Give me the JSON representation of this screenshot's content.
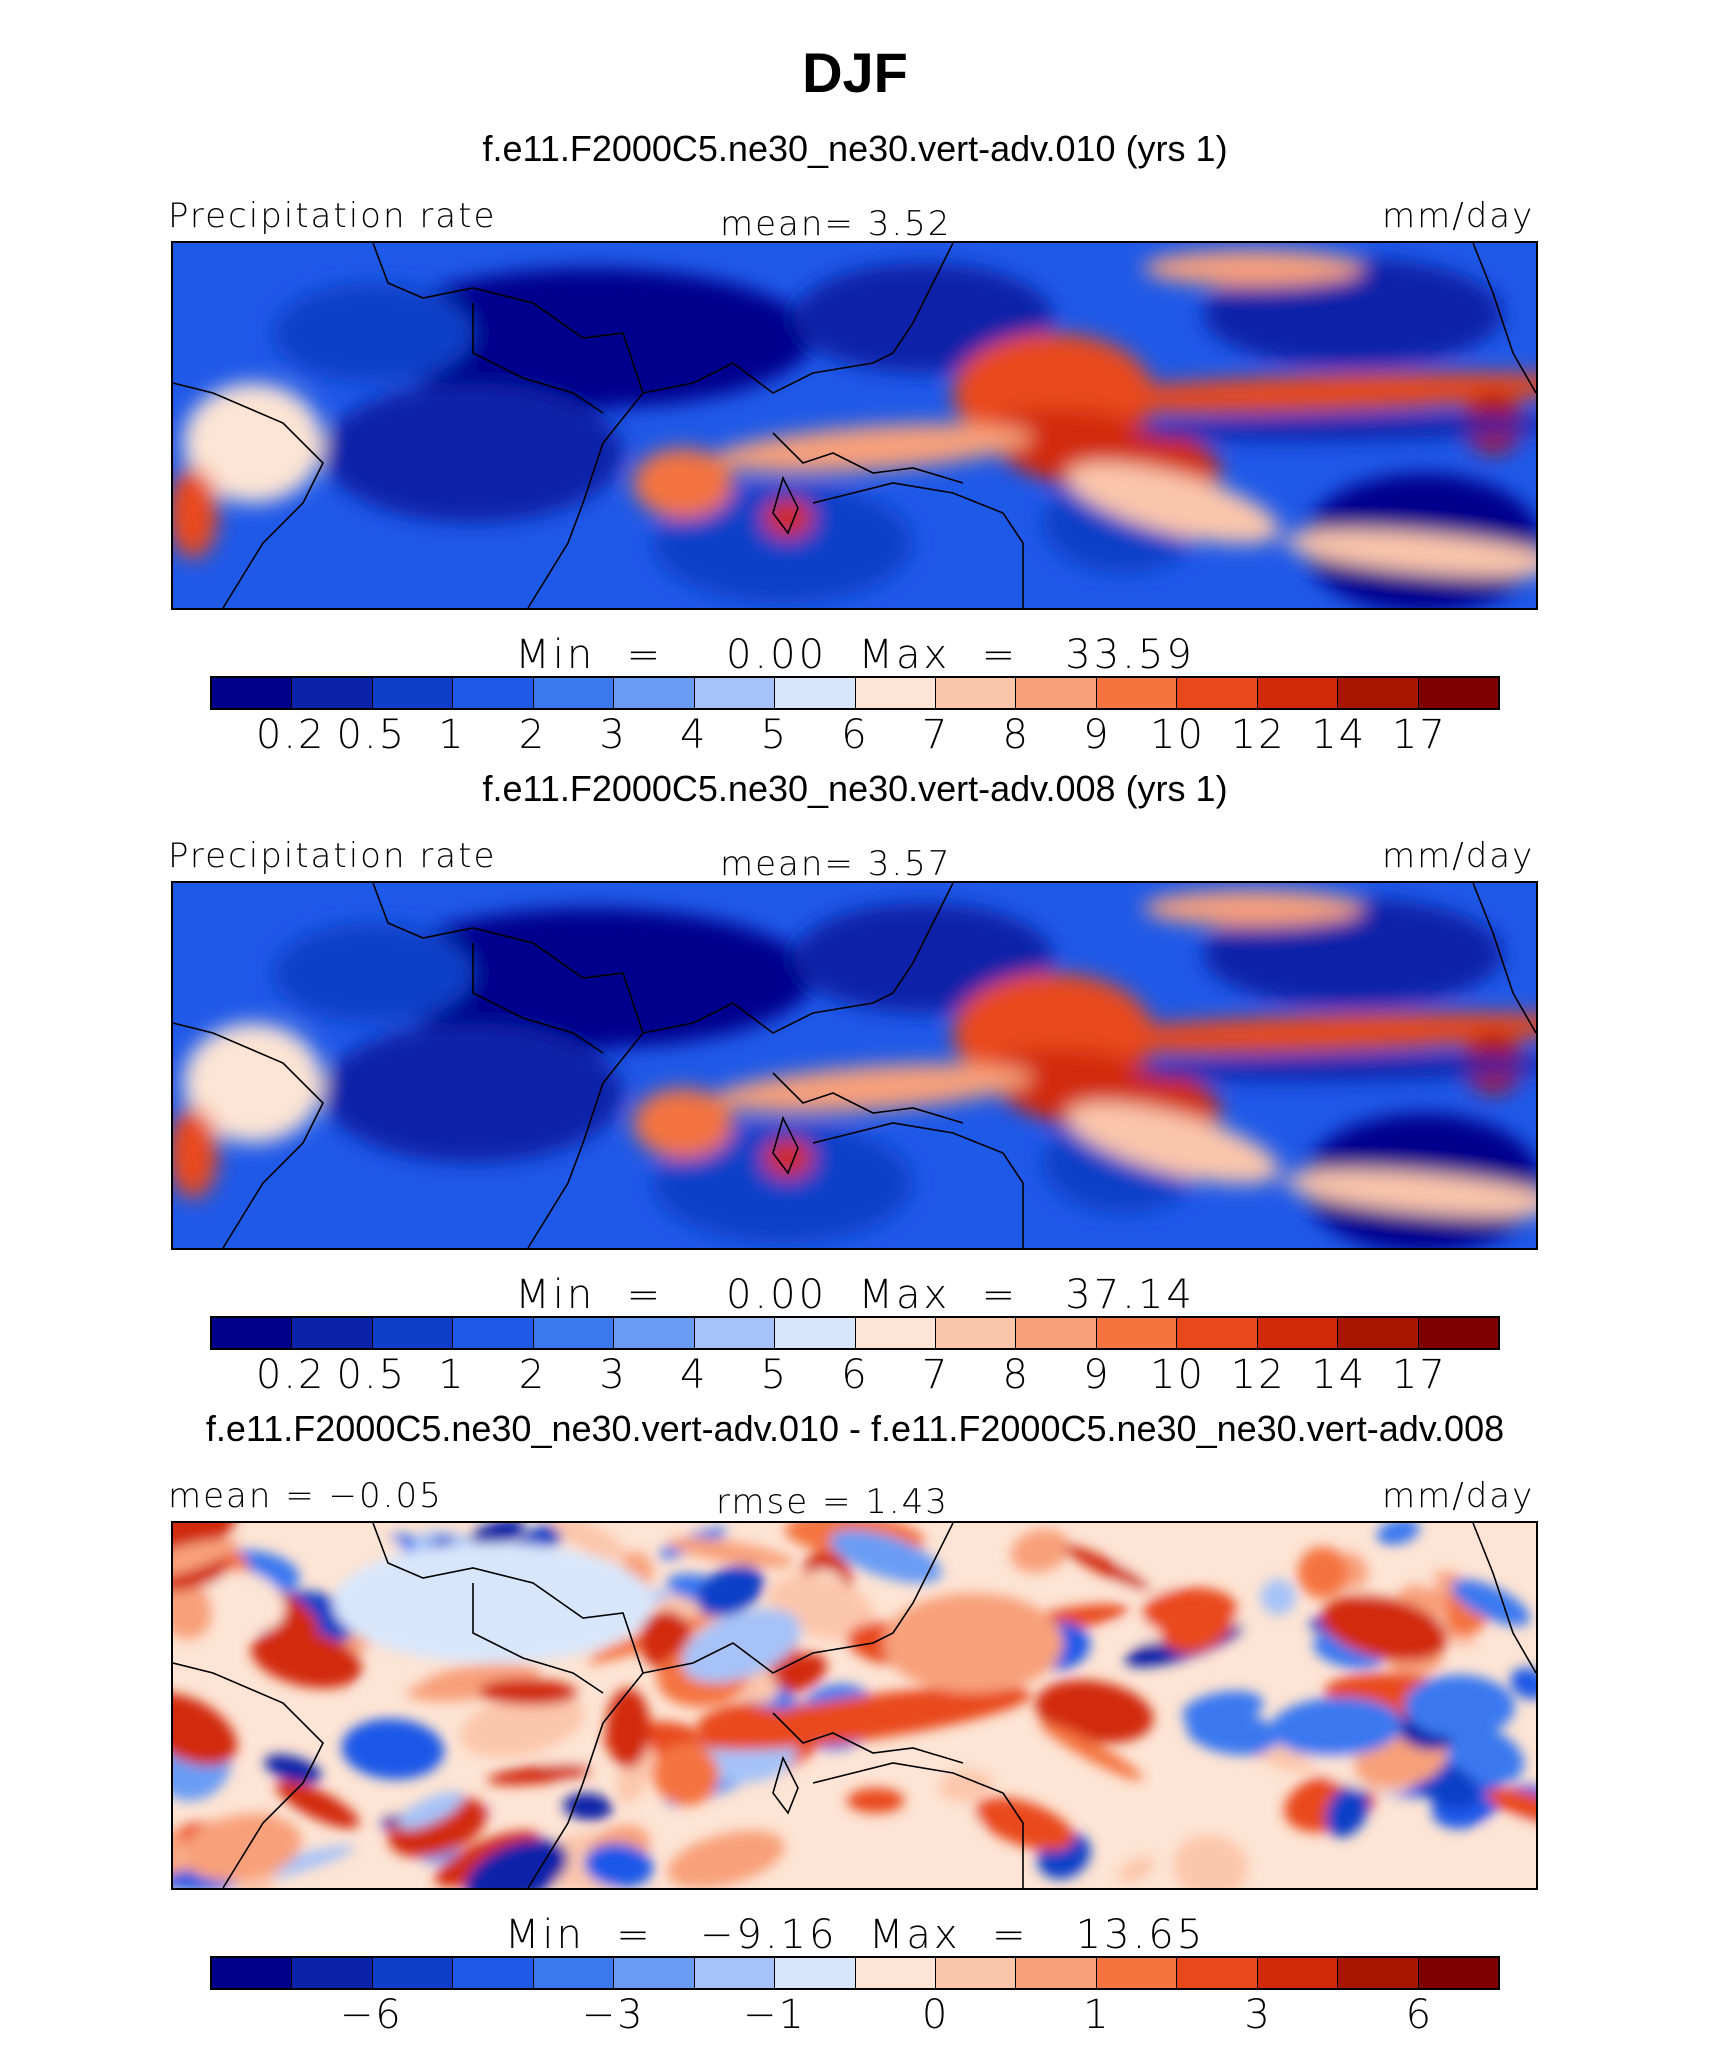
{
  "title": "DJF",
  "panels": [
    {
      "case": "f.e11.F2000C5.ne30_ne30.vert-adv.010 (yrs 1)",
      "left_label": "Precipitation rate",
      "center_label": "mean=    3.52",
      "right_label": "mm/day",
      "minmax": "Min  =    0.00  Max  =   33.59",
      "colorbar": {
        "colors": [
          "#00008c",
          "#0a23a8",
          "#0f3fc8",
          "#1f59e8",
          "#3a78f0",
          "#6a9cf4",
          "#a6c2f8",
          "#d8e6fb",
          "#fde4d4",
          "#fcc6ab",
          "#f8a07a",
          "#f4733f",
          "#e9481c",
          "#d22a08",
          "#a81500",
          "#800000"
        ],
        "labels": [
          "0.2",
          "0.5",
          "1",
          "2",
          "3",
          "4",
          "5",
          "6",
          "7",
          "8",
          "9",
          "10",
          "12",
          "14",
          "17"
        ]
      }
    },
    {
      "case": "f.e11.F2000C5.ne30_ne30.vert-adv.008 (yrs 1)",
      "left_label": "Precipitation rate",
      "center_label": "mean=    3.57",
      "right_label": "mm/day",
      "minmax": "Min  =    0.00  Max  =   37.14",
      "colorbar": {
        "colors": [
          "#00008c",
          "#0a23a8",
          "#0f3fc8",
          "#1f59e8",
          "#3a78f0",
          "#6a9cf4",
          "#a6c2f8",
          "#d8e6fb",
          "#fde4d4",
          "#fcc6ab",
          "#f8a07a",
          "#f4733f",
          "#e9481c",
          "#d22a08",
          "#a81500",
          "#800000"
        ],
        "labels": [
          "0.2",
          "0.5",
          "1",
          "2",
          "3",
          "4",
          "5",
          "6",
          "7",
          "8",
          "9",
          "10",
          "12",
          "14",
          "17"
        ]
      }
    },
    {
      "case": "f.e11.F2000C5.ne30_ne30.vert-adv.010 - f.e11.F2000C5.ne30_ne30.vert-adv.008",
      "left_label": "mean  =   −0.05",
      "center_label": "rmse  =    1.43",
      "right_label": "mm/day",
      "minmax": "Min  =   −9.16  Max  =   13.65",
      "colorbar": {
        "colors": [
          "#00008c",
          "#0a23a8",
          "#0f3fc8",
          "#1f59e8",
          "#3a78f0",
          "#6a9cf4",
          "#a6c2f8",
          "#d8e6fb",
          "#fde4d4",
          "#fcc6ab",
          "#f8a07a",
          "#f4733f",
          "#e9481c",
          "#d22a08",
          "#a81500",
          "#800000"
        ],
        "labels": [
          "",
          "−6",
          "",
          "",
          "−3",
          "",
          "−1",
          "",
          "0",
          "",
          "1",
          "",
          "3",
          "",
          "6",
          ""
        ]
      }
    }
  ],
  "chart_data": [
    {
      "type": "heatmap",
      "title": "DJF",
      "subtitle": "f.e11.F2000C5.ne30_ne30.vert-adv.010 (yrs 1)",
      "variable": "Precipitation rate",
      "units": "mm/day",
      "mean": 3.52,
      "min": 0.0,
      "max": 33.59,
      "contour_levels": [
        0.2,
        0.5,
        1,
        2,
        3,
        4,
        5,
        6,
        7,
        8,
        9,
        10,
        12,
        14,
        17
      ]
    },
    {
      "type": "heatmap",
      "subtitle": "f.e11.F2000C5.ne30_ne30.vert-adv.008 (yrs 1)",
      "variable": "Precipitation rate",
      "units": "mm/day",
      "mean": 3.57,
      "min": 0.0,
      "max": 37.14,
      "contour_levels": [
        0.2,
        0.5,
        1,
        2,
        3,
        4,
        5,
        6,
        7,
        8,
        9,
        10,
        12,
        14,
        17
      ]
    },
    {
      "type": "heatmap",
      "subtitle": "f.e11.F2000C5.ne30_ne30.vert-adv.010 - f.e11.F2000C5.ne30_ne30.vert-adv.008",
      "units": "mm/day",
      "mean": -0.05,
      "rmse": 1.43,
      "min": -9.16,
      "max": 13.65,
      "colorbar_ticks": [
        -6,
        -3,
        -1,
        0,
        1,
        3,
        6
      ]
    }
  ]
}
